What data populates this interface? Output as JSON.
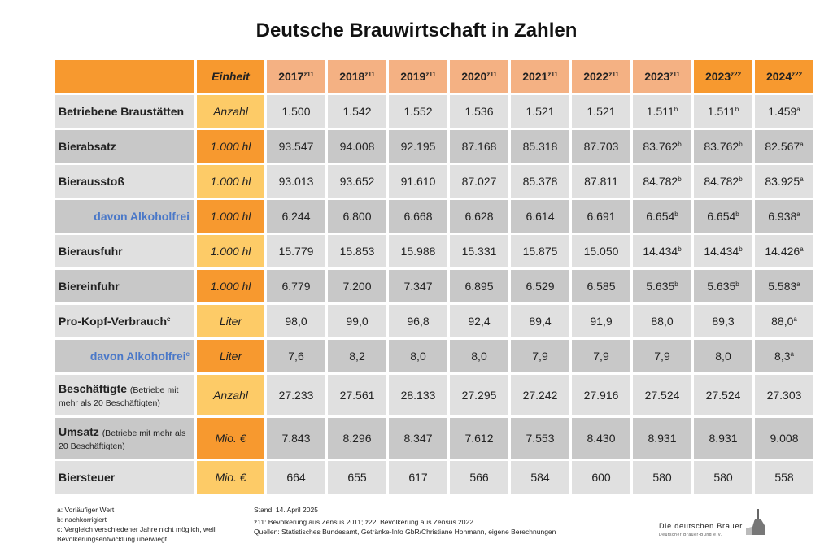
{
  "title": "Deutsche Brauwirtschaft in Zahlen",
  "header": {
    "unit_label": "Einheit",
    "years": [
      {
        "year": "2017",
        "sup": "z11"
      },
      {
        "year": "2018",
        "sup": "z11"
      },
      {
        "year": "2019",
        "sup": "z11"
      },
      {
        "year": "2020",
        "sup": "z11"
      },
      {
        "year": "2021",
        "sup": "z11"
      },
      {
        "year": "2022",
        "sup": "z11"
      },
      {
        "year": "2023",
        "sup": "z11"
      },
      {
        "year": "2023",
        "sup": "z22"
      },
      {
        "year": "2024",
        "sup": "z22"
      }
    ]
  },
  "rows": [
    {
      "label": "Betriebene Braustätten",
      "unit": "Anzahl",
      "values": [
        {
          "v": "1.500"
        },
        {
          "v": "1.542"
        },
        {
          "v": "1.552"
        },
        {
          "v": "1.536"
        },
        {
          "v": "1.521"
        },
        {
          "v": "1.521"
        },
        {
          "v": "1.511",
          "sup": "b"
        },
        {
          "v": "1.511",
          "sup": "b"
        },
        {
          "v": "1.459",
          "sup": "a"
        }
      ]
    },
    {
      "label": "Bierabsatz",
      "unit": "1.000 hl",
      "values": [
        {
          "v": "93.547"
        },
        {
          "v": "94.008"
        },
        {
          "v": "92.195"
        },
        {
          "v": "87.168"
        },
        {
          "v": "85.318"
        },
        {
          "v": "87.703"
        },
        {
          "v": "83.762",
          "sup": "b"
        },
        {
          "v": "83.762",
          "sup": "b"
        },
        {
          "v": "82.567",
          "sup": "a"
        }
      ]
    },
    {
      "label": "Bierausstoß",
      "unit": "1.000 hl",
      "values": [
        {
          "v": "93.013"
        },
        {
          "v": "93.652"
        },
        {
          "v": "91.610"
        },
        {
          "v": "87.027"
        },
        {
          "v": "85.378"
        },
        {
          "v": "87.811"
        },
        {
          "v": "84.782",
          "sup": "b"
        },
        {
          "v": "84.782",
          "sup": "b"
        },
        {
          "v": "83.925",
          "sup": "a"
        }
      ]
    },
    {
      "label": "davon Alkoholfrei",
      "sub": true,
      "unit": "1.000 hl",
      "values": [
        {
          "v": "6.244"
        },
        {
          "v": "6.800"
        },
        {
          "v": "6.668"
        },
        {
          "v": "6.628"
        },
        {
          "v": "6.614"
        },
        {
          "v": "6.691"
        },
        {
          "v": "6.654",
          "sup": "b"
        },
        {
          "v": "6.654",
          "sup": "b"
        },
        {
          "v": "6.938",
          "sup": "a"
        }
      ]
    },
    {
      "label": "Bierausfuhr",
      "unit": "1.000 hl",
      "values": [
        {
          "v": "15.779"
        },
        {
          "v": "15.853"
        },
        {
          "v": "15.988"
        },
        {
          "v": "15.331"
        },
        {
          "v": "15.875"
        },
        {
          "v": "15.050"
        },
        {
          "v": "14.434",
          "sup": "b"
        },
        {
          "v": "14.434",
          "sup": "b"
        },
        {
          "v": "14.426",
          "sup": "a"
        }
      ]
    },
    {
      "label": "Biereinfuhr",
      "unit": "1.000 hl",
      "values": [
        {
          "v": "6.779"
        },
        {
          "v": "7.200"
        },
        {
          "v": "7.347"
        },
        {
          "v": "6.895"
        },
        {
          "v": "6.529"
        },
        {
          "v": "6.585"
        },
        {
          "v": "5.635",
          "sup": "b"
        },
        {
          "v": "5.635",
          "sup": "b"
        },
        {
          "v": "5.583",
          "sup": "a"
        }
      ]
    },
    {
      "label": "Pro-Kopf-Verbrauch",
      "label_sup": "c",
      "unit": "Liter",
      "values": [
        {
          "v": "98,0"
        },
        {
          "v": "99,0"
        },
        {
          "v": "96,8"
        },
        {
          "v": "92,4"
        },
        {
          "v": "89,4"
        },
        {
          "v": "91,9"
        },
        {
          "v": "88,0"
        },
        {
          "v": "89,3"
        },
        {
          "v": "88,0",
          "sup": "a"
        }
      ]
    },
    {
      "label": "davon Alkoholfrei",
      "label_sup": "c",
      "sub": true,
      "unit": "Liter",
      "values": [
        {
          "v": "7,6"
        },
        {
          "v": "8,2"
        },
        {
          "v": "8,0"
        },
        {
          "v": "8,0"
        },
        {
          "v": "7,9"
        },
        {
          "v": "7,9"
        },
        {
          "v": "7,9"
        },
        {
          "v": "8,0"
        },
        {
          "v": "8,3",
          "sup": "a"
        }
      ]
    },
    {
      "label": "Beschäftigte",
      "note": "(Betriebe mit mehr als 20 Beschäftigten)",
      "unit": "Anzahl",
      "values": [
        {
          "v": "27.233"
        },
        {
          "v": "27.561"
        },
        {
          "v": "28.133"
        },
        {
          "v": "27.295"
        },
        {
          "v": "27.242"
        },
        {
          "v": "27.916"
        },
        {
          "v": "27.524"
        },
        {
          "v": "27.524"
        },
        {
          "v": "27.303"
        }
      ]
    },
    {
      "label": "Umsatz",
      "note": "(Betriebe mit mehr als 20 Beschäftigten)",
      "unit": "Mio. €",
      "values": [
        {
          "v": "7.843"
        },
        {
          "v": "8.296"
        },
        {
          "v": "8.347"
        },
        {
          "v": "7.612"
        },
        {
          "v": "7.553"
        },
        {
          "v": "8.430"
        },
        {
          "v": "8.931"
        },
        {
          "v": "8.931"
        },
        {
          "v": "9.008"
        }
      ]
    },
    {
      "label": "Biersteuer",
      "unit": "Mio. €",
      "values": [
        {
          "v": "664"
        },
        {
          "v": "655"
        },
        {
          "v": "617"
        },
        {
          "v": "566"
        },
        {
          "v": "584"
        },
        {
          "v": "600"
        },
        {
          "v": "580"
        },
        {
          "v": "580"
        },
        {
          "v": "558"
        }
      ]
    }
  ],
  "footnotes": {
    "left": [
      "a: Vorläufiger Wert",
      "b: nachkorrigiert",
      "c: Vergleich verschiedener Jahre nicht möglich, weil Bevölkerungsentwicklung überwiegt"
    ],
    "stand": "Stand: 14. April 2025",
    "zensus": "z11: Bevölkerung aus Zensus 2011; z22: Bevölkerung aus Zensus 2022",
    "quellen": "Quellen: Statistisches Bundesamt, Getränke-Info GbR/Christiane Hohmann, eigene Berechnungen"
  },
  "logo": {
    "name": "Die deutschen Brauer",
    "org": "Deutscher Brauer-Bund e.V."
  },
  "colors": {
    "orange": "#f7992f",
    "salmon": "#f4b183",
    "yellow": "#fdcb67",
    "gray_light": "#e0e0e0",
    "gray_dark": "#c8c8c8",
    "blue": "#4a78c8"
  }
}
